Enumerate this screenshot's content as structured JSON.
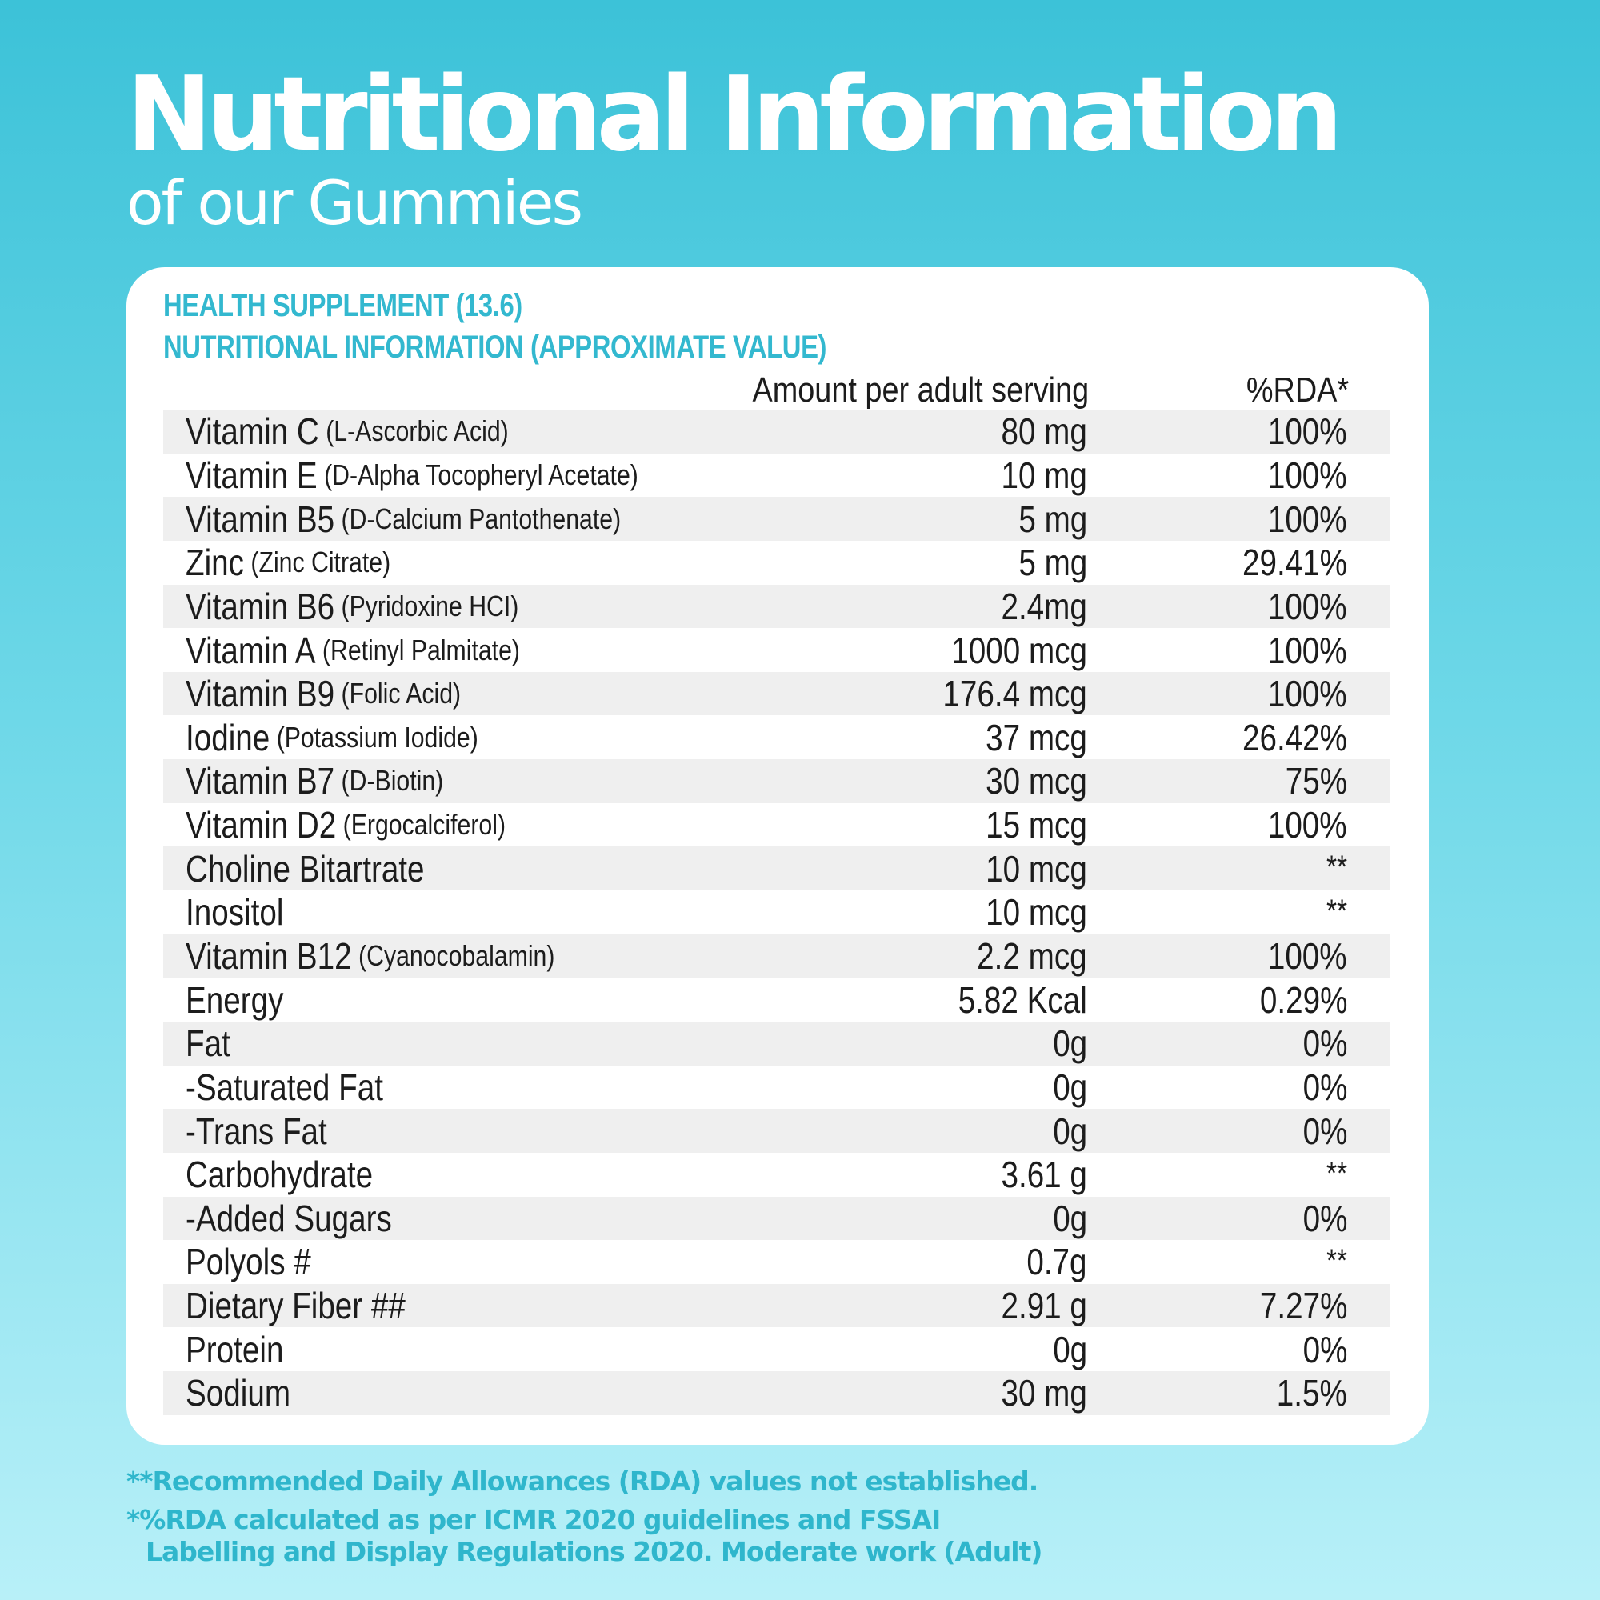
{
  "header": {
    "title": "Nutritional Information",
    "subtitle": "of our Gummies"
  },
  "card": {
    "heading_line1": "HEALTH SUPPLEMENT (13.6)",
    "heading_line2": "NUTRITIONAL INFORMATION (APPROXIMATE VALUE)",
    "col_amount": "Amount per adult serving",
    "col_rda": "%RDA*"
  },
  "rows": [
    {
      "name": "Vitamin C",
      "sub": "(L-Ascorbic Acid)",
      "amount": "80 mg",
      "rda": "100%"
    },
    {
      "name": "Vitamin E",
      "sub": "(D-Alpha Tocopheryl Acetate)",
      "amount": "10 mg",
      "rda": "100%"
    },
    {
      "name": "Vitamin B5",
      "sub": "(D-Calcium Pantothenate)",
      "amount": "5 mg",
      "rda": "100%"
    },
    {
      "name": "Zinc",
      "sub": "(Zinc Citrate)",
      "amount": "5 mg",
      "rda": "29.41%"
    },
    {
      "name": "Vitamin B6",
      "sub": "(Pyridoxine HCI)",
      "amount": "2.4mg",
      "rda": "100%"
    },
    {
      "name": "Vitamin A",
      "sub": "(Retinyl Palmitate)",
      "amount": "1000 mcg",
      "rda": "100%"
    },
    {
      "name": "Vitamin B9",
      "sub": "(Folic Acid)",
      "amount": "176.4 mcg",
      "rda": "100%"
    },
    {
      "name": "Iodine",
      "sub": "(Potassium Iodide)",
      "amount": "37 mcg",
      "rda": "26.42%"
    },
    {
      "name": "Vitamin B7",
      "sub": "(D-Biotin)",
      "amount": "30 mcg",
      "rda": "75%"
    },
    {
      "name": "Vitamin D2",
      "sub": "(Ergocalciferol)",
      "amount": "15 mcg",
      "rda": "100%"
    },
    {
      "name": "Choline Bitartrate",
      "sub": "",
      "amount": "10 mcg",
      "rda": "**"
    },
    {
      "name": "Inositol",
      "sub": "",
      "amount": "10 mcg",
      "rda": "**"
    },
    {
      "name": "Vitamin B12",
      "sub": "(Cyanocobalamin)",
      "amount": "2.2 mcg",
      "rda": "100%"
    },
    {
      "name": "Energy",
      "sub": "",
      "amount": "5.82 Kcal",
      "rda": "0.29%"
    },
    {
      "name": "Fat",
      "sub": "",
      "amount": "0g",
      "rda": "0%"
    },
    {
      "name": "-Saturated Fat",
      "sub": "",
      "amount": "0g",
      "rda": "0%"
    },
    {
      "name": "-Trans Fat",
      "sub": "",
      "amount": "0g",
      "rda": "0%"
    },
    {
      "name": "Carbohydrate",
      "sub": "",
      "amount": "3.61 g",
      "rda": "**"
    },
    {
      "name": "-Added Sugars",
      "sub": "",
      "amount": "0g",
      "rda": "0%"
    },
    {
      "name": "Polyols #",
      "sub": "",
      "amount": "0.7g",
      "rda": "**"
    },
    {
      "name": "Dietary Fiber ##",
      "sub": "",
      "amount": "2.91 g",
      "rda": "7.27%"
    },
    {
      "name": "Protein",
      "sub": "",
      "amount": "0g",
      "rda": "0%"
    },
    {
      "name": "Sodium",
      "sub": "",
      "amount": "30 mg",
      "rda": "1.5%"
    }
  ],
  "footnotes": {
    "note1": "**Recommended Daily Allowances (RDA) values not established.",
    "note2_line1": "*%RDA calculated as per ICMR 2020 guidelines and FSSAI",
    "note2_line2": "Labelling and Display Regulations 2020. Moderate work (Adult)"
  },
  "colors": {
    "accent": "#33b8cf",
    "row_shade": "#efefef",
    "text": "#1c1c1c"
  }
}
